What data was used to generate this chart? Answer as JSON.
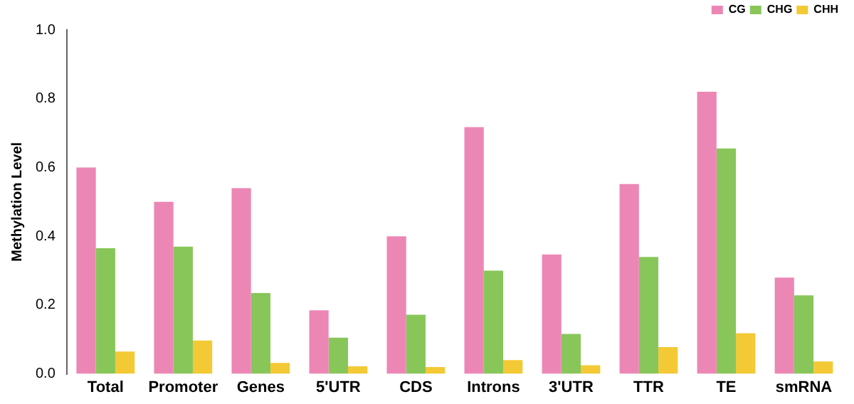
{
  "chart_data": {
    "type": "bar",
    "ylabel": "Methylation Level",
    "categories": [
      "Total",
      "Promoter",
      "Genes",
      "5'UTR",
      "CDS",
      "Introns",
      "3'UTR",
      "TTR",
      "TE",
      "smRNA"
    ],
    "series": [
      {
        "name": "CG",
        "color": "#ec87b5",
        "values": [
          0.6,
          0.5,
          0.54,
          0.185,
          0.4,
          0.717,
          0.347,
          0.552,
          0.82,
          0.28
        ]
      },
      {
        "name": "CHG",
        "color": "#88c65a",
        "values": [
          0.365,
          0.37,
          0.235,
          0.105,
          0.172,
          0.3,
          0.116,
          0.34,
          0.655,
          0.228
        ]
      },
      {
        "name": "CHH",
        "color": "#f3c935",
        "values": [
          0.065,
          0.097,
          0.032,
          0.022,
          0.02,
          0.04,
          0.025,
          0.078,
          0.118,
          0.036
        ]
      }
    ],
    "ylim": [
      0,
      1
    ],
    "yticks": [
      {
        "value": 0,
        "label": "0.0"
      },
      {
        "value": 0.2,
        "label": "0.2"
      },
      {
        "value": 0.4,
        "label": "0.4"
      },
      {
        "value": 0.6,
        "label": "0.6"
      },
      {
        "value": 0.8,
        "label": "0.8"
      },
      {
        "value": 1,
        "label": "1.0"
      }
    ],
    "grid": false,
    "legend": "top right"
  }
}
